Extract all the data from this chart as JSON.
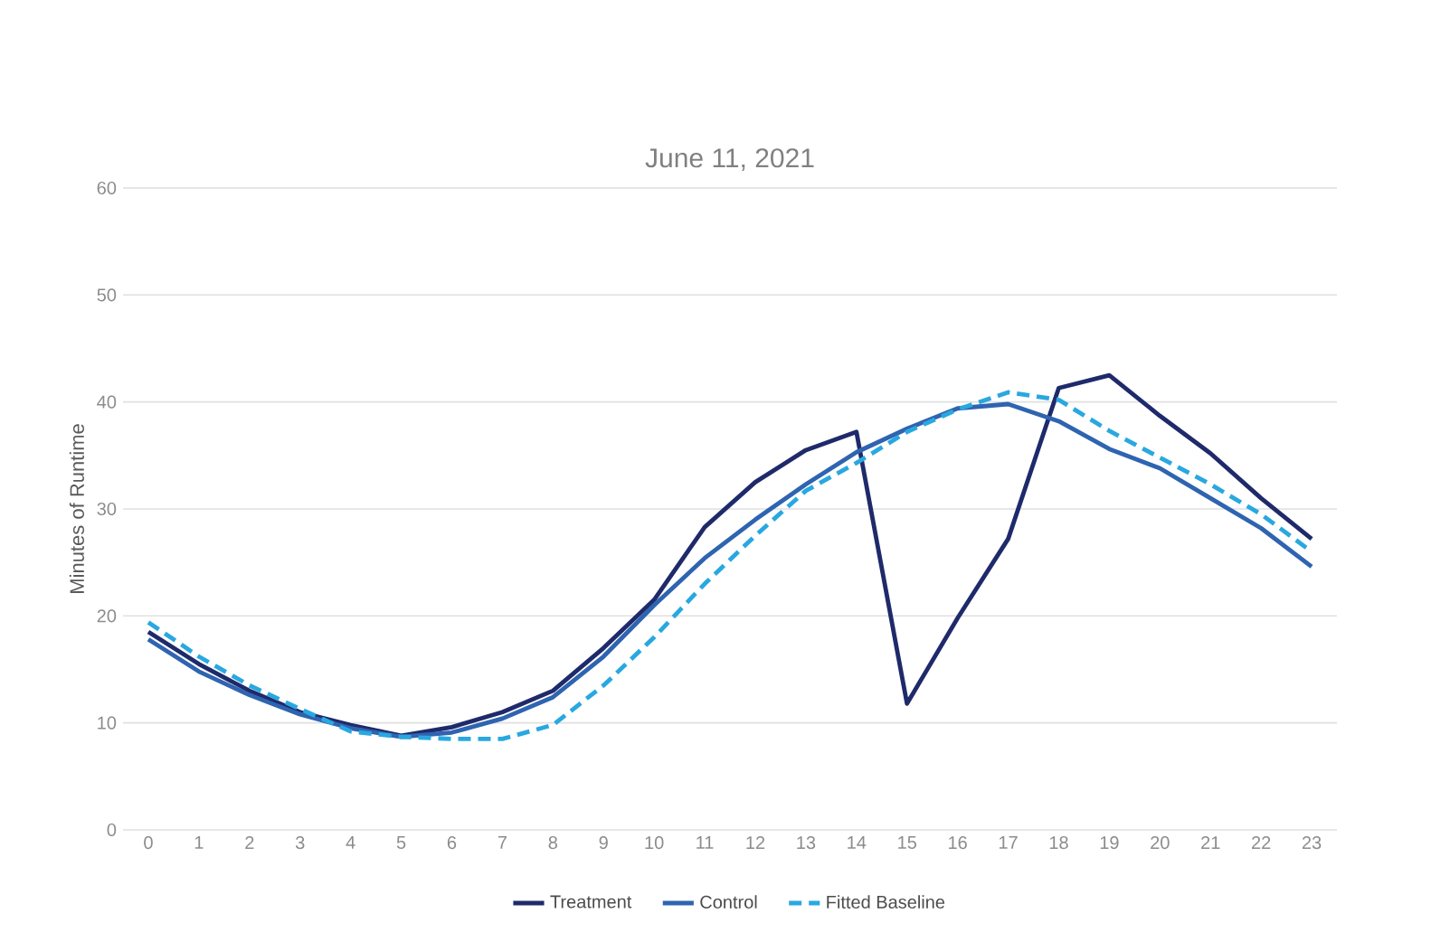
{
  "chart_data": {
    "type": "line",
    "title": "June 11, 2021",
    "ylabel": "Minutes of Runtime",
    "categories": [
      "0",
      "1",
      "2",
      "3",
      "4",
      "5",
      "6",
      "7",
      "8",
      "9",
      "10",
      "11",
      "12",
      "13",
      "14",
      "15",
      "16",
      "17",
      "18",
      "19",
      "20",
      "21",
      "22",
      "23"
    ],
    "ylim": [
      0,
      60
    ],
    "yticks": [
      0,
      10,
      20,
      30,
      40,
      50,
      60
    ],
    "grid": "y",
    "legend": "bottom",
    "marker": "none",
    "series": [
      {
        "name": "Treatment",
        "color": "#1f2a6b",
        "line_style": "solid",
        "values": [
          18.5,
          15.5,
          13,
          11,
          9.8,
          8.8,
          9.6,
          11,
          13,
          17,
          21.5,
          28.3,
          32.5,
          35.5,
          37.2,
          11.8,
          19.8,
          27.2,
          41.3,
          42.5,
          38.7,
          35.2,
          31,
          27.2
        ]
      },
      {
        "name": "Control",
        "color": "#2e64b0",
        "line_style": "solid",
        "values": [
          17.8,
          14.8,
          12.6,
          10.8,
          9.5,
          8.7,
          9.1,
          10.4,
          12.4,
          16.2,
          21,
          25.4,
          29,
          32.3,
          35.3,
          37.5,
          39.4,
          39.8,
          38.2,
          35.6,
          33.8,
          31,
          28.2,
          24.6
        ]
      },
      {
        "name": "Fitted Baseline",
        "color": "#29a8e0",
        "line_style": "dashed",
        "values": [
          19.4,
          16.2,
          13.5,
          11.3,
          9.2,
          8.7,
          8.5,
          8.5,
          9.8,
          13.5,
          18,
          23,
          27.5,
          31.7,
          34.3,
          37.2,
          39.3,
          40.9,
          40.2,
          37.3,
          34.8,
          32.3,
          29.5,
          26
        ]
      }
    ]
  }
}
